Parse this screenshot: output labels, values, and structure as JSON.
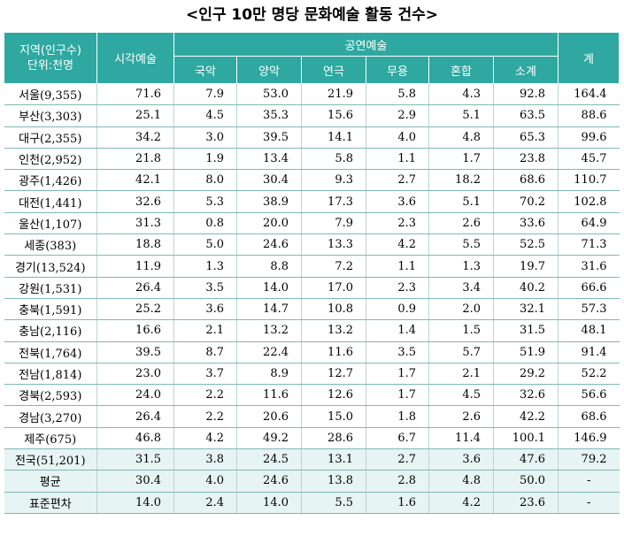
{
  "title": "<인구 10만 명당 문화예술 활동 건수>",
  "header": {
    "region_line1": "지역(인구수)",
    "region_line2": "단위:천명",
    "visual": "시각예술",
    "performing": "공연예술",
    "sub": [
      "국악",
      "양악",
      "연극",
      "무용",
      "혼합",
      "소계"
    ],
    "total": "계"
  },
  "rows": [
    {
      "region": "서울(9,355)",
      "values": [
        "71.6",
        "7.9",
        "53.0",
        "21.9",
        "5.8",
        "4.3",
        "92.8",
        "164.4"
      ]
    },
    {
      "region": "부산(3,303)",
      "values": [
        "25.1",
        "4.5",
        "35.3",
        "15.6",
        "2.9",
        "5.1",
        "63.5",
        "88.6"
      ]
    },
    {
      "region": "대구(2,355)",
      "values": [
        "34.2",
        "3.0",
        "39.5",
        "14.1",
        "4.0",
        "4.8",
        "65.3",
        "99.6"
      ]
    },
    {
      "region": "인천(2,952)",
      "values": [
        "21.8",
        "1.9",
        "13.4",
        "5.8",
        "1.1",
        "1.7",
        "23.8",
        "45.7"
      ]
    },
    {
      "region": "광주(1,426)",
      "values": [
        "42.1",
        "8.0",
        "30.4",
        "9.3",
        "2.7",
        "18.2",
        "68.6",
        "110.7"
      ]
    },
    {
      "region": "대전(1,441)",
      "values": [
        "32.6",
        "5.3",
        "38.9",
        "17.3",
        "3.6",
        "5.1",
        "70.2",
        "102.8"
      ]
    },
    {
      "region": "울산(1,107)",
      "values": [
        "31.3",
        "0.8",
        "20.0",
        "7.9",
        "2.3",
        "2.6",
        "33.6",
        "64.9"
      ]
    },
    {
      "region": "세종(383)",
      "values": [
        "18.8",
        "5.0",
        "24.6",
        "13.3",
        "4.2",
        "5.5",
        "52.5",
        "71.3"
      ]
    },
    {
      "region": "경기(13,524)",
      "values": [
        "11.9",
        "1.3",
        "8.8",
        "7.2",
        "1.1",
        "1.3",
        "19.7",
        "31.6"
      ]
    },
    {
      "region": "강원(1,531)",
      "values": [
        "26.4",
        "3.5",
        "14.0",
        "17.0",
        "2.3",
        "3.4",
        "40.2",
        "66.6"
      ]
    },
    {
      "region": "충북(1,591)",
      "values": [
        "25.2",
        "3.6",
        "14.7",
        "10.8",
        "0.9",
        "2.0",
        "32.1",
        "57.3"
      ]
    },
    {
      "region": "충남(2,116)",
      "values": [
        "16.6",
        "2.1",
        "13.2",
        "13.2",
        "1.4",
        "1.5",
        "31.5",
        "48.1"
      ]
    },
    {
      "region": "전북(1,764)",
      "values": [
        "39.5",
        "8.7",
        "22.4",
        "11.6",
        "3.5",
        "5.7",
        "51.9",
        "91.4"
      ]
    },
    {
      "region": "전남(1,814)",
      "values": [
        "23.0",
        "3.7",
        "8.9",
        "12.7",
        "1.7",
        "2.1",
        "29.2",
        "52.2"
      ]
    },
    {
      "region": "경북(2,593)",
      "values": [
        "24.0",
        "2.2",
        "11.6",
        "12.6",
        "1.7",
        "4.5",
        "32.6",
        "56.6"
      ]
    },
    {
      "region": "경남(3,270)",
      "values": [
        "26.4",
        "2.2",
        "20.6",
        "15.0",
        "1.8",
        "2.6",
        "42.2",
        "68.6"
      ]
    },
    {
      "region": "제주(675)",
      "values": [
        "46.8",
        "4.2",
        "49.2",
        "28.6",
        "6.7",
        "11.4",
        "100.1",
        "146.9"
      ]
    }
  ],
  "summary": [
    {
      "region": "전국(51,201)",
      "values": [
        "31.5",
        "3.8",
        "24.5",
        "13.1",
        "2.7",
        "3.6",
        "47.6",
        "79.2"
      ]
    },
    {
      "region": "평균",
      "values": [
        "30.4",
        "4.0",
        "24.6",
        "13.8",
        "2.8",
        "4.8",
        "50.0",
        "-"
      ]
    },
    {
      "region": "표준편차",
      "values": [
        "14.0",
        "2.4",
        "14.0",
        "5.5",
        "1.6",
        "4.2",
        "23.6",
        "-"
      ]
    }
  ],
  "colors": {
    "header_bg": "#2ea8a0",
    "summary_bg": "#e6f4f3",
    "rule": "#7fb8b4"
  }
}
